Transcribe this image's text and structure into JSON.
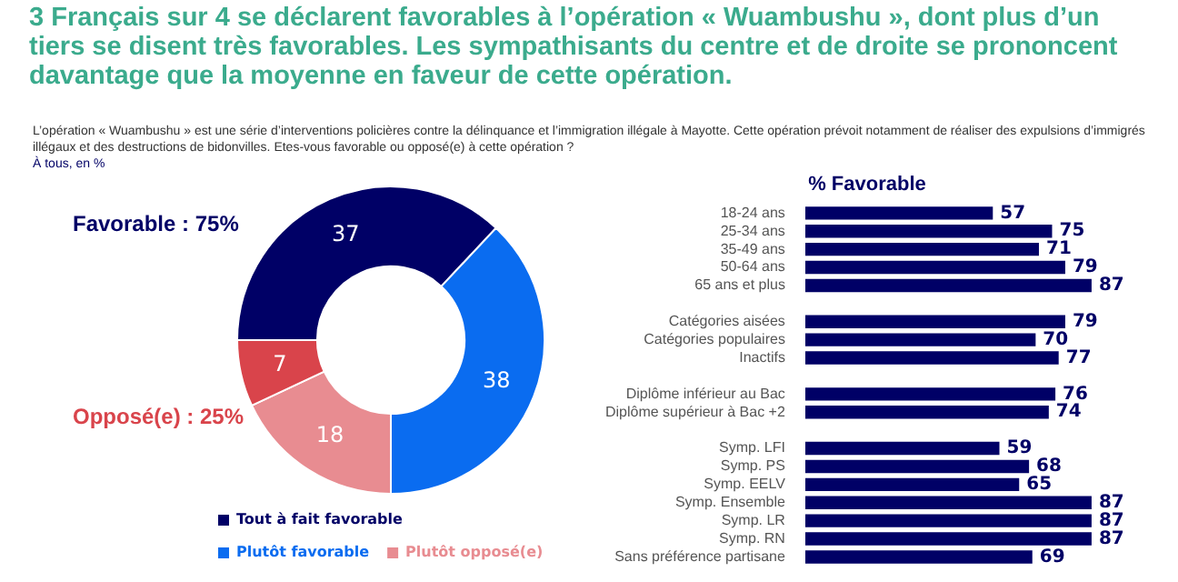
{
  "chart_data": [
    {
      "type": "donut",
      "title": "3 Français sur 4 se déclarent favorables à l’opération « Wuambushu », dont plus d’un tiers se disent très favorables. Les sympathisants du centre et de droite se prononcent davantage que la moyenne en faveur de cette opération.",
      "subtitle": "L’opération « Wuambushu » est une série d’interventions policières contre la délinquance et l’immigration illégale à Mayotte. Cette opération prévoit notamment de réaliser des expulsions d’immigrés illégaux et des destructions de bidonvilles. Etes-vous favorable ou opposé(e) à cette opération ?",
      "annotations": [
        "À tous, en %",
        "Favorable : 75%",
        "Opposé(e) : 25%"
      ],
      "categories": [
        "Tout à fait favorable",
        "Plutôt favorable",
        "Plutôt opposé(e)",
        null
      ],
      "values": [
        37,
        38,
        18,
        7
      ],
      "colors": [
        "#000066",
        "#0a6cf0",
        "#e88c91",
        "#d9444b"
      ],
      "data_labels": true,
      "legend": "bottom"
    },
    {
      "type": "bar",
      "orientation": "horizontal",
      "title": "% Favorable",
      "categories": [
        "18-24 ans",
        "25-34 ans",
        "35-49 ans",
        "50-64 ans",
        "65 ans et plus",
        null,
        "Catégories aisées",
        "Catégories populaires",
        "Inactifs",
        null,
        "Diplôme inférieur au Bac",
        "Diplôme supérieur à Bac +2",
        null,
        "Symp. LFI",
        "Symp. PS",
        "Symp. EELV",
        "Symp. Ensemble",
        "Symp. LR",
        "Symp. RN",
        "Sans préférence partisane"
      ],
      "values": [
        57,
        75,
        71,
        79,
        87,
        null,
        79,
        70,
        77,
        null,
        76,
        74,
        null,
        59,
        68,
        65,
        87,
        87,
        87,
        69
      ],
      "color": "#000066",
      "data_labels": true,
      "tick_labels": "y",
      "grid": false,
      "legend": false
    }
  ]
}
